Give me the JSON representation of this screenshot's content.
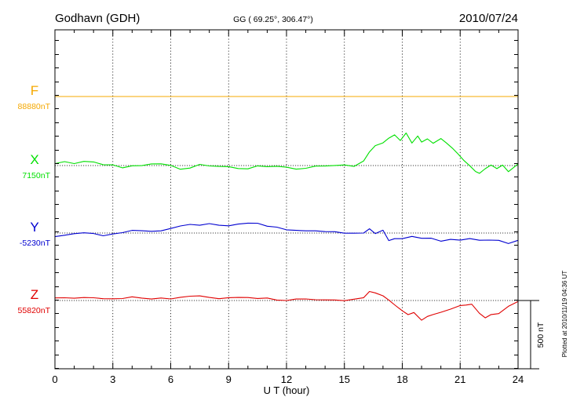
{
  "header": {
    "station": "Godhavn (GDH)",
    "coords": "GG ( 69.25°, 306.47°)",
    "date": "2010/07/24"
  },
  "footer": {
    "plotted": "Plotted at 2010/11/19 04:36 UT"
  },
  "chart_data": {
    "type": "line",
    "title": "Godhavn (GDH)",
    "subtitle": "GG ( 69.25°, 306.47°)",
    "date": "2010/07/24",
    "xlabel": "U T (hour)",
    "xlim": [
      0,
      24
    ],
    "xticks": [
      "0",
      "3",
      "6",
      "9",
      "12",
      "15",
      "18",
      "21",
      "24"
    ],
    "grid": true,
    "scale_bar": {
      "label": "500 nT",
      "value_nT": 500
    },
    "series": [
      {
        "name": "F",
        "baseline_label": "88880nT",
        "color": "#f5a800",
        "x": [
          0,
          24
        ],
        "y": [
          0,
          0
        ]
      },
      {
        "name": "X",
        "baseline_label": "7150nT",
        "color": "#00e000",
        "x": [
          0,
          0.5,
          1,
          1.5,
          2,
          2.5,
          3,
          3.5,
          4,
          4.5,
          5,
          5.5,
          6,
          6.5,
          7,
          7.5,
          8,
          8.5,
          9,
          9.5,
          10,
          10.5,
          11,
          11.5,
          12,
          12.5,
          13,
          13.5,
          14,
          14.5,
          15,
          15.5,
          16,
          16.3,
          16.6,
          17,
          17.3,
          17.6,
          17.9,
          18.2,
          18.5,
          18.8,
          19,
          19.3,
          19.6,
          20,
          20.3,
          20.6,
          20.9,
          21.2,
          21.5,
          21.8,
          22,
          22.3,
          22.6,
          22.9,
          23.2,
          23.5,
          24
        ],
        "y": [
          20,
          35,
          15,
          25,
          20,
          5,
          10,
          -10,
          0,
          -5,
          5,
          10,
          5,
          -20,
          -15,
          5,
          -10,
          -10,
          -5,
          -15,
          -20,
          -5,
          -15,
          -10,
          -10,
          -20,
          -15,
          -5,
          -10,
          -5,
          5,
          0,
          40,
          100,
          140,
          160,
          200,
          230,
          190,
          240,
          160,
          210,
          170,
          200,
          170,
          200,
          160,
          120,
          80,
          40,
          5,
          -40,
          -60,
          -30,
          0,
          -20,
          10,
          -40,
          10
        ]
      },
      {
        "name": "Y",
        "baseline_label": "-5230nT",
        "color": "#0000d0",
        "x": [
          0,
          0.5,
          1,
          1.5,
          2,
          2.5,
          3,
          3.5,
          4,
          4.5,
          5,
          5.5,
          6,
          6.5,
          7,
          7.5,
          8,
          8.5,
          9,
          9.5,
          10,
          10.5,
          11,
          11.5,
          12,
          12.5,
          13,
          13.5,
          14,
          14.5,
          15,
          15.5,
          16,
          16.3,
          16.6,
          17,
          17.3,
          17.6,
          18,
          18.5,
          19,
          19.5,
          20,
          20.5,
          21,
          21.5,
          22,
          22.5,
          23,
          23.5,
          24
        ],
        "y": [
          -20,
          -15,
          -10,
          -5,
          -5,
          -15,
          0,
          5,
          15,
          10,
          10,
          20,
          40,
          55,
          60,
          50,
          65,
          60,
          60,
          70,
          70,
          65,
          45,
          45,
          30,
          25,
          15,
          10,
          5,
          10,
          5,
          5,
          0,
          25,
          -10,
          20,
          -50,
          -35,
          -40,
          -30,
          -45,
          -40,
          -55,
          -40,
          -50,
          -45,
          -60,
          -55,
          -50,
          -70,
          -50
        ]
      },
      {
        "name": "Z",
        "baseline_label": "55820nT",
        "color": "#e00000",
        "x": [
          0,
          0.5,
          1,
          1.5,
          2,
          2.5,
          3,
          3.5,
          4,
          4.5,
          5,
          5.5,
          6,
          6.5,
          7,
          7.5,
          8,
          8.5,
          9,
          9.5,
          10,
          10.5,
          11,
          11.5,
          12,
          12.5,
          13,
          13.5,
          14,
          14.5,
          15,
          15.5,
          16,
          16.3,
          16.6,
          17,
          17.3,
          17.6,
          18,
          18.3,
          18.6,
          19,
          19.3,
          19.6,
          20,
          20.5,
          21,
          21.3,
          21.6,
          22,
          22.3,
          22.6,
          23,
          23.5,
          24
        ],
        "y": [
          20,
          15,
          10,
          20,
          25,
          20,
          15,
          10,
          20,
          15,
          15,
          25,
          15,
          20,
          25,
          30,
          25,
          20,
          25,
          20,
          15,
          10,
          20,
          10,
          5,
          10,
          5,
          0,
          5,
          10,
          5,
          10,
          15,
          60,
          55,
          40,
          10,
          -30,
          -80,
          -110,
          -90,
          -140,
          -110,
          -100,
          -90,
          -70,
          -40,
          -30,
          -20,
          -90,
          -130,
          -110,
          -100,
          -40,
          0
        ]
      }
    ]
  }
}
